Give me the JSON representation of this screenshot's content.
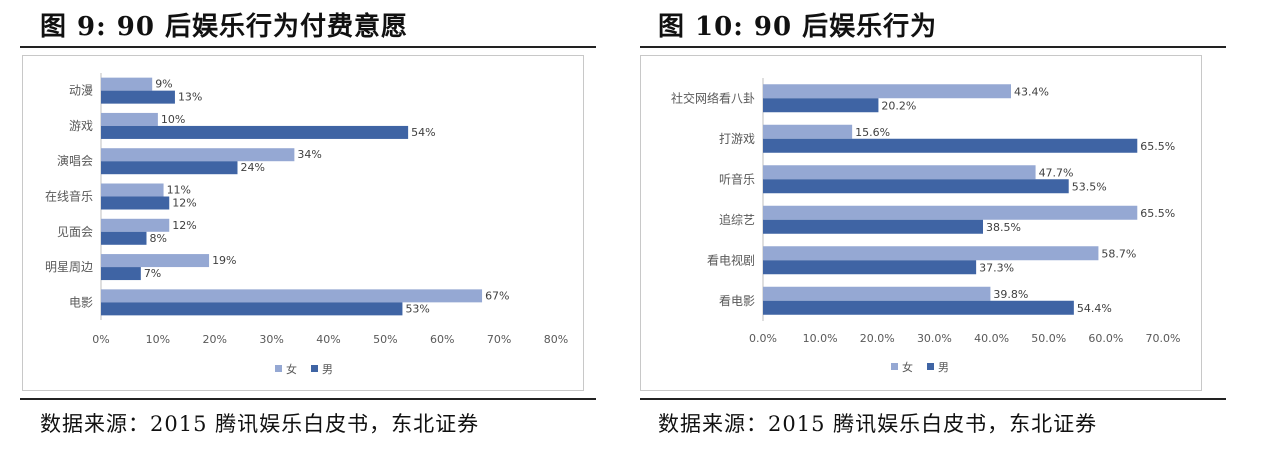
{
  "colors": {
    "female": "#95a8d3",
    "male": "#3f64a4",
    "axis_text": "#595959",
    "grid": "#d9d9d9"
  },
  "left": {
    "title": "图 9: 90 后娱乐行为付费意愿",
    "source": "数据来源：2015 腾讯娱乐白皮书，东北证券"
  },
  "right": {
    "title": "图 10: 90 后娱乐行为",
    "source": "数据来源：2015 腾讯娱乐白皮书，东北证券"
  },
  "chart_data": [
    {
      "type": "bar",
      "orientation": "horizontal",
      "categories": [
        "动漫",
        "游戏",
        "演唱会",
        "在线音乐",
        "见面会",
        "明星周边",
        "电影"
      ],
      "series": [
        {
          "name": "女",
          "values": [
            9,
            10,
            34,
            11,
            12,
            19,
            67
          ],
          "labels": [
            "9%",
            "10%",
            "34%",
            "11%",
            "12%",
            "19%",
            "67%"
          ]
        },
        {
          "name": "男",
          "values": [
            13,
            54,
            24,
            12,
            8,
            7,
            53
          ],
          "labels": [
            "13%",
            "54%",
            "24%",
            "12%",
            "8%",
            "7%",
            "53%"
          ]
        }
      ],
      "xlim": [
        0,
        80
      ],
      "x_ticks": [
        "0%",
        "10%",
        "20%",
        "30%",
        "40%",
        "50%",
        "60%",
        "70%",
        "80%"
      ],
      "grid": false,
      "legend": "bottom"
    },
    {
      "type": "bar",
      "orientation": "horizontal",
      "categories": [
        "社交网络看八卦",
        "打游戏",
        "听音乐",
        "追综艺",
        "看电视剧",
        "看电影"
      ],
      "series": [
        {
          "name": "女",
          "values": [
            43.4,
            15.6,
            47.7,
            65.5,
            58.7,
            39.8
          ],
          "labels": [
            "43.4%",
            "15.6%",
            "47.7%",
            "65.5%",
            "58.7%",
            "39.8%"
          ]
        },
        {
          "name": "男",
          "values": [
            20.2,
            65.5,
            53.5,
            38.5,
            37.3,
            54.4
          ],
          "labels": [
            "20.2%",
            "65.5%",
            "53.5%",
            "38.5%",
            "37.3%",
            "54.4%"
          ]
        }
      ],
      "xlim": [
        0,
        70
      ],
      "x_ticks": [
        "0.0%",
        "10.0%",
        "20.0%",
        "30.0%",
        "40.0%",
        "50.0%",
        "60.0%",
        "70.0%"
      ],
      "grid": false,
      "legend": "bottom"
    }
  ]
}
